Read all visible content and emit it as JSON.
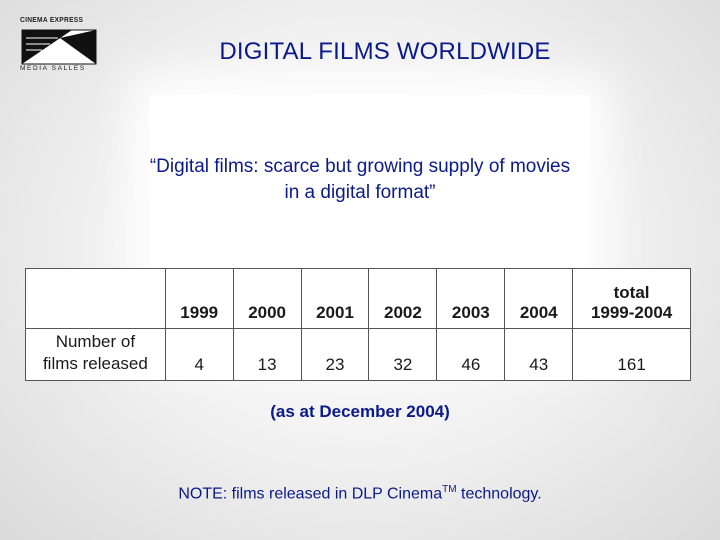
{
  "logo": {
    "top_text": "CINEMA EXPRESS",
    "bottom_text": "MEDIA SALLES"
  },
  "title": "DIGITAL FILMS WORLDWIDE",
  "quote": {
    "line1": "“Digital films: scarce but growing supply of movies",
    "line2": "in a digital format”"
  },
  "table": {
    "headers": [
      "1999",
      "2000",
      "2001",
      "2002",
      "2003",
      "2004",
      "total 1999-2004"
    ],
    "total_header_line1": "total",
    "total_header_line2": "1999-2004",
    "row_label_line1": "Number of",
    "row_label_line2": "films released",
    "values": [
      "4",
      "13",
      "23",
      "32",
      "46",
      "43",
      "161"
    ]
  },
  "as_at": "(as at December 2004)",
  "note": {
    "prefix": "NOTE: films released in DLP Cinema",
    "sup": "TM",
    "suffix": " technology."
  }
}
